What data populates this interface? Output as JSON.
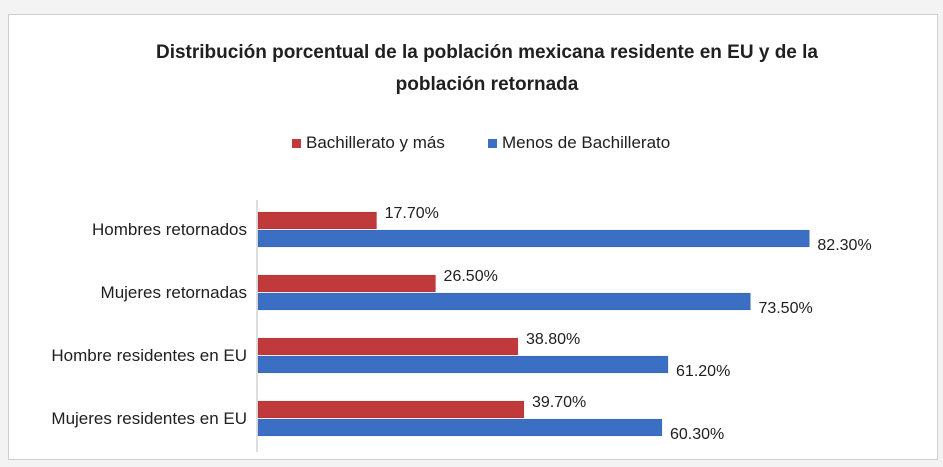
{
  "chart_data": {
    "type": "bar",
    "orientation": "horizontal",
    "title": "Distribución porcentual de la población mexicana residente en EU y de la población retornada",
    "title_lines": [
      "Distribución porcentual de la población mexicana residente en EU y de la",
      "población retornada"
    ],
    "categories": [
      "Hombres retornados",
      "Mujeres retornadas",
      "Hombre residentes en EU",
      "Mujeres residentes en EU"
    ],
    "series": [
      {
        "name": "Bachillerato y más",
        "color": "#c0393b",
        "values": [
          17.7,
          26.5,
          38.8,
          39.7
        ],
        "labels": [
          "17.70%",
          "26.50%",
          "38.80%",
          "39.70%"
        ]
      },
      {
        "name": "Menos de Bachillerato",
        "color": "#3a6fc4",
        "values": [
          82.3,
          73.5,
          61.2,
          60.3
        ],
        "labels": [
          "82.30%",
          "73.50%",
          "61.20%",
          "60.30%"
        ]
      }
    ],
    "xlim": [
      0,
      100
    ],
    "legend_position": "top",
    "grid": false,
    "xlabel": "",
    "ylabel": ""
  }
}
